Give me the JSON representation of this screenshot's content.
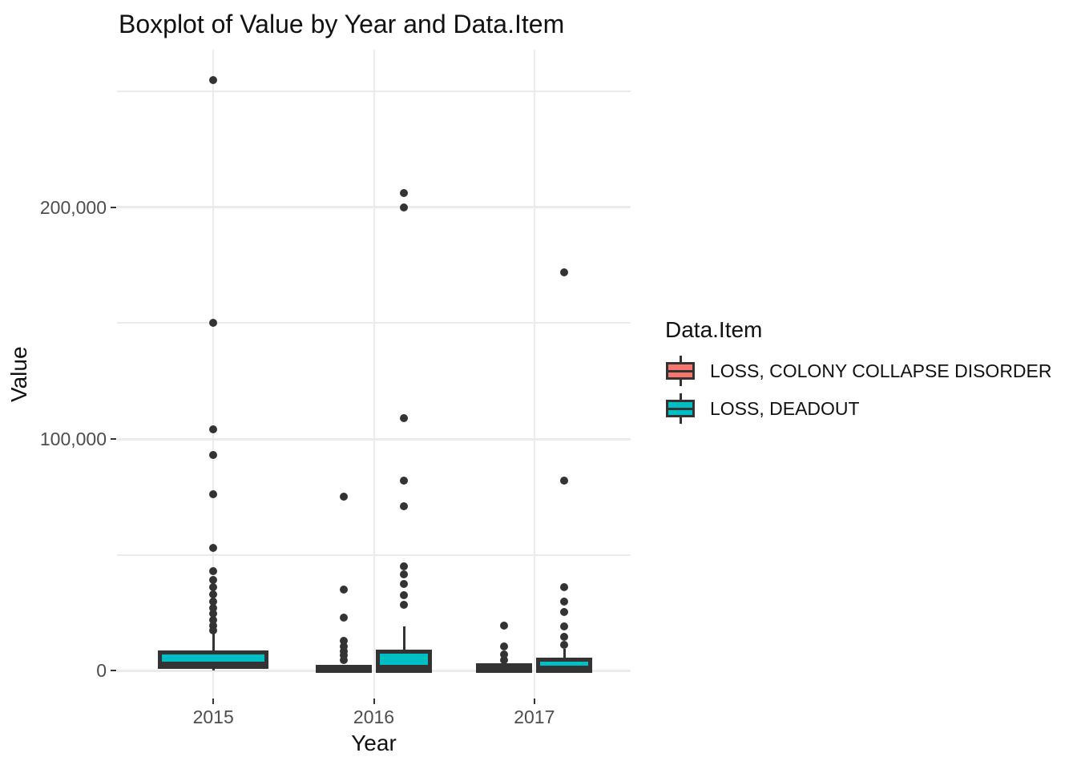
{
  "title": "Boxplot of Value by Year and Data.Item",
  "colors": {
    "ccd_fill": "#F8766D",
    "deadout_fill": "#00BFC4",
    "box_outline": "#333333",
    "gridline": "#ebebeb",
    "axis_text": "#4d4d4d",
    "title_text": "#111111",
    "background": "#ffffff"
  },
  "legend": {
    "title": "Data.Item",
    "items": [
      {
        "label": "LOSS, COLONY COLLAPSE DISORDER",
        "color": "#F8766D"
      },
      {
        "label": "LOSS, DEADOUT",
        "color": "#00BFC4"
      }
    ]
  },
  "chart_data": {
    "type": "boxplot",
    "title": "Boxplot of Value by Year and Data.Item",
    "xlabel": "Year",
    "ylabel": "Value",
    "categories": [
      "2015",
      "2016",
      "2017"
    ],
    "y_axis": {
      "ylim": [
        -12000,
        268000
      ],
      "major_ticks": [
        {
          "value": 0,
          "label": "0"
        },
        {
          "value": 100000,
          "label": "100,000"
        },
        {
          "value": 200000,
          "label": "200,000"
        }
      ],
      "minor_ticks": [
        50000,
        150000,
        250000
      ],
      "grid": true
    },
    "legend_position": "right",
    "series": [
      {
        "name": "LOSS, COLONY COLLAPSE DISORDER",
        "color": "#F8766D",
        "boxes": [
          null,
          {
            "q1": 0,
            "median": 800,
            "q3": 1700,
            "whisker_low": 0,
            "whisker_high": 1700,
            "outliers": [
              75000,
              35000,
              23000,
              13000,
              10500,
              8500,
              6500,
              4500
            ]
          },
          {
            "q1": 0,
            "median": 800,
            "q3": 2200,
            "whisker_low": 0,
            "whisker_high": 2200,
            "outliers": [
              19500,
              10500,
              7000,
              4500
            ]
          }
        ]
      },
      {
        "name": "LOSS, DEADOUT",
        "color": "#00BFC4",
        "boxes": [
          {
            "q1": 1700,
            "median": 3000,
            "q3": 7900,
            "whisker_low": 0,
            "whisker_high": 17000,
            "outliers": [
              255000,
              150000,
              104000,
              93000,
              76000,
              53000,
              43000,
              39000,
              36000,
              33000,
              30000,
              27000,
              24500,
              22000,
              19500,
              17500
            ]
          },
          {
            "q1": 0,
            "median": 1500,
            "q3": 8300,
            "whisker_low": 0,
            "whisker_high": 19000,
            "outliers": [
              206000,
              200000,
              109000,
              82000,
              71000,
              45000,
              41500,
              37500,
              32500,
              28500
            ]
          },
          {
            "q1": 0,
            "median": 1200,
            "q3": 4800,
            "whisker_low": 0,
            "whisker_high": 9300,
            "outliers": [
              172000,
              82000,
              36000,
              30000,
              25500,
              19000,
              14500,
              11000
            ]
          }
        ]
      }
    ]
  }
}
